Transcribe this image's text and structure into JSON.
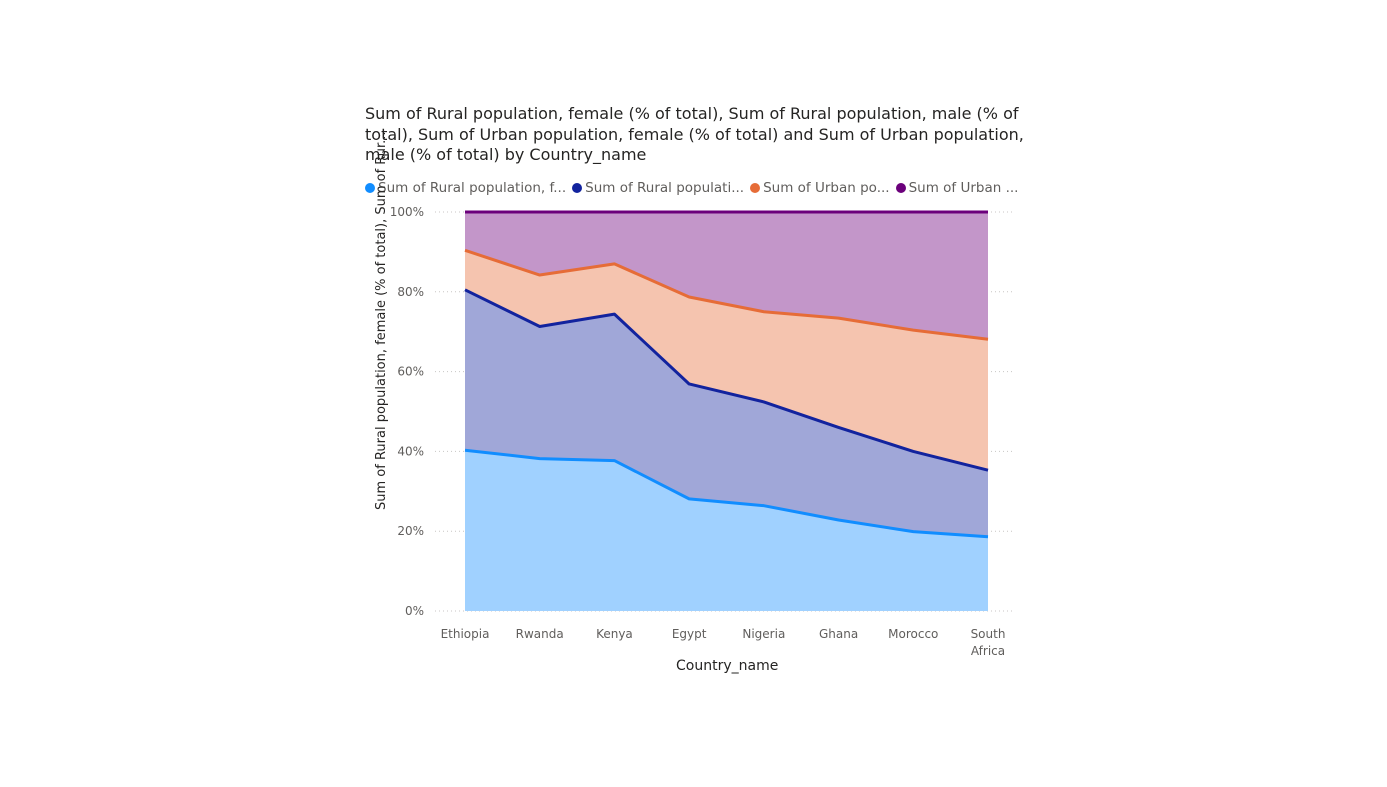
{
  "chart_data": {
    "type": "area",
    "stacked": true,
    "title": "Sum of Rural population, female (% of total), Sum of Rural population, male (% of total), Sum of Urban population, female (% of total) and Sum of Urban population, male (% of total) by Country_name",
    "xlabel": "Country_name",
    "ylabel": "Sum of Rural population, female (% of total), Sum of Rur...",
    "categories": [
      "Ethiopia",
      "Rwanda",
      "Kenya",
      "Egypt",
      "Nigeria",
      "Ghana",
      "Morocco",
      "South Africa"
    ],
    "category_lines": [
      [
        "Ethiopia"
      ],
      [
        "Rwanda"
      ],
      [
        "Kenya"
      ],
      [
        "Egypt"
      ],
      [
        "Nigeria"
      ],
      [
        "Ghana"
      ],
      [
        "Morocco"
      ],
      [
        "South",
        "Africa"
      ]
    ],
    "ylim": [
      0,
      100
    ],
    "yticks": [
      "0%",
      "20%",
      "40%",
      "60%",
      "80%",
      "100%"
    ],
    "grid": true,
    "legend_position": "top-left",
    "series": [
      {
        "name": "Sum of Rural population, female (% of total)",
        "legend_label": "Sum of Rural population, f...",
        "line_color": "#118DFF",
        "fill_color": "#A0D1FF",
        "values": [
          40.3,
          38.2,
          37.7,
          28.1,
          26.4,
          22.8,
          19.9,
          18.6
        ]
      },
      {
        "name": "Sum of Rural population, male (% of total)",
        "legend_label": "Sum of Rural populati...",
        "line_color": "#12239E",
        "fill_color": "#A0A7D8",
        "values": [
          40.2,
          33.1,
          36.7,
          28.8,
          26.0,
          23.2,
          20.1,
          16.7
        ]
      },
      {
        "name": "Sum of Urban population, female (% of total)",
        "legend_label": "Sum of Urban po...",
        "line_color": "#E66C37",
        "fill_color": "#F5C4AF",
        "values": [
          9.9,
          12.9,
          12.6,
          21.8,
          22.6,
          27.4,
          30.4,
          32.8
        ]
      },
      {
        "name": "Sum of Urban population, male (% of total)",
        "legend_label": "Sum of Urban ...",
        "line_color": "#6B007B",
        "fill_color": "#C396C9",
        "values": [
          9.6,
          15.8,
          13.0,
          21.3,
          25.0,
          26.6,
          29.6,
          31.9
        ]
      }
    ]
  }
}
